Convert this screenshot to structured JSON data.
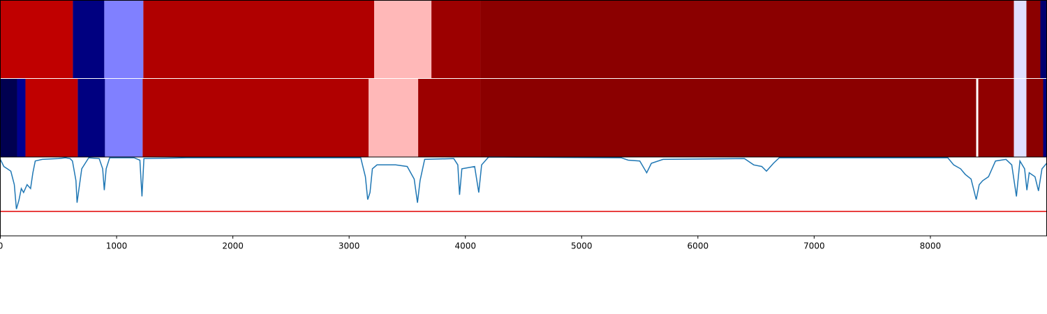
{
  "chart_data": {
    "type": "segments-line",
    "xlim": [
      0,
      9000
    ],
    "xticks": [
      0,
      1000,
      2000,
      3000,
      4000,
      5000,
      6000,
      7000,
      8000
    ],
    "bands": [
      {
        "segments": [
          {
            "start": 0,
            "end": 624,
            "color": "#c00000"
          },
          {
            "start": 624,
            "end": 894,
            "color": "#000080"
          },
          {
            "start": 894,
            "end": 1230,
            "color": "#8080ff"
          },
          {
            "start": 1230,
            "end": 3216,
            "color": "#b00000"
          },
          {
            "start": 3216,
            "end": 3708,
            "color": "#ffb8b8"
          },
          {
            "start": 3708,
            "end": 4128,
            "color": "#9c0000"
          },
          {
            "start": 4128,
            "end": 8718,
            "color": "#8b0000"
          },
          {
            "start": 8718,
            "end": 8826,
            "color": "#e0e0ff"
          },
          {
            "start": 8826,
            "end": 8946,
            "color": "#8b0000"
          },
          {
            "start": 8946,
            "end": 9000,
            "color": "#000070"
          }
        ]
      },
      {
        "segments": [
          {
            "start": 0,
            "end": 144,
            "color": "#000050"
          },
          {
            "start": 144,
            "end": 216,
            "color": "#000090"
          },
          {
            "start": 216,
            "end": 666,
            "color": "#c00000"
          },
          {
            "start": 666,
            "end": 900,
            "color": "#000080"
          },
          {
            "start": 900,
            "end": 1224,
            "color": "#8080ff"
          },
          {
            "start": 1224,
            "end": 3168,
            "color": "#b00000"
          },
          {
            "start": 3168,
            "end": 3594,
            "color": "#ffb8b8"
          },
          {
            "start": 3594,
            "end": 4128,
            "color": "#9c0000"
          },
          {
            "start": 4128,
            "end": 8394,
            "color": "#8b0000"
          },
          {
            "start": 8394,
            "end": 8412,
            "color": "#ffffff"
          },
          {
            "start": 8412,
            "end": 8718,
            "color": "#900000"
          },
          {
            "start": 8718,
            "end": 8826,
            "color": "#e0e0ff"
          },
          {
            "start": 8826,
            "end": 8970,
            "color": "#8b0000"
          },
          {
            "start": 8970,
            "end": 9000,
            "color": "#000080"
          }
        ]
      }
    ],
    "ylim": [
      0,
      1
    ],
    "threshold": 0.31,
    "threshold_color": "#e00000",
    "line": {
      "color": "#1f77b4",
      "x": [
        0,
        30,
        60,
        90,
        120,
        138,
        160,
        180,
        200,
        230,
        260,
        280,
        300,
        360,
        500,
        560,
        600,
        620,
        650,
        660,
        700,
        760,
        850,
        880,
        894,
        910,
        940,
        1150,
        1200,
        1218,
        1235,
        1600,
        3100,
        3140,
        3160,
        3180,
        3200,
        3240,
        3400,
        3500,
        3560,
        3588,
        3610,
        3650,
        3900,
        3935,
        3950,
        3970,
        4080,
        4115,
        4140,
        4200,
        5340,
        5400,
        5500,
        5560,
        5600,
        5700,
        6400,
        6480,
        6550,
        6590,
        6650,
        6700,
        8150,
        8200,
        8260,
        8300,
        8350,
        8394,
        8420,
        8450,
        8500,
        8560,
        8650,
        8700,
        8740,
        8770,
        8810,
        8830,
        8850,
        8900,
        8930,
        8960,
        9000
      ],
      "values": [
        0.97,
        0.88,
        0.85,
        0.82,
        0.65,
        0.34,
        0.45,
        0.6,
        0.55,
        0.65,
        0.6,
        0.8,
        0.95,
        0.97,
        0.98,
        0.99,
        0.98,
        0.95,
        0.7,
        0.42,
        0.85,
        0.99,
        0.98,
        0.85,
        0.58,
        0.85,
        0.99,
        0.99,
        0.96,
        0.5,
        0.98,
        0.99,
        0.99,
        0.75,
        0.46,
        0.55,
        0.85,
        0.9,
        0.9,
        0.88,
        0.72,
        0.42,
        0.7,
        0.97,
        0.98,
        0.9,
        0.52,
        0.85,
        0.88,
        0.55,
        0.9,
        1.0,
        0.99,
        0.96,
        0.95,
        0.8,
        0.92,
        0.97,
        0.98,
        0.9,
        0.88,
        0.82,
        0.92,
        0.99,
        0.99,
        0.9,
        0.85,
        0.78,
        0.72,
        0.46,
        0.65,
        0.7,
        0.75,
        0.95,
        0.97,
        0.9,
        0.5,
        0.95,
        0.85,
        0.58,
        0.8,
        0.75,
        0.57,
        0.85,
        0.92
      ]
    }
  }
}
